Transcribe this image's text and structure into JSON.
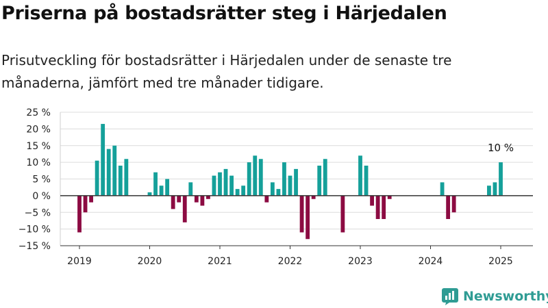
{
  "header": {
    "title": "Priserna på bostadsrätter steg i Härjedalen",
    "subtitle": "Prisutveckling för bostadsrätter i Härjedalen under de senaste tre månaderna, jämfört med tre månader tidigare."
  },
  "chart_data": {
    "type": "bar",
    "title": "Priserna på bostadsrätter steg i Härjedalen",
    "subtitle": "Prisutveckling för bostadsrätter i Härjedalen under de senaste tre månaderna, jämfört med tre månader tidigare.",
    "xlabel": "",
    "ylabel": "",
    "x_ticks": [
      "2019",
      "2020",
      "2021",
      "2022",
      "2023",
      "2024",
      "2025"
    ],
    "y_ticks": [
      "25 %",
      "20 %",
      "15 %",
      "10 %",
      "5 %",
      "0 %",
      "−5 %",
      "−10 %",
      "−15 %"
    ],
    "ylim": [
      -15,
      25
    ],
    "grid": true,
    "unit": "%",
    "colors": {
      "positive": "#15a09a",
      "negative": "#8c0b42"
    },
    "series": [
      {
        "values": [
          {
            "date": "2019-01",
            "value": -11
          },
          {
            "date": "2019-02",
            "value": -5
          },
          {
            "date": "2019-03",
            "value": -2
          },
          {
            "date": "2019-04",
            "value": 10.5
          },
          {
            "date": "2019-05",
            "value": 21.5
          },
          {
            "date": "2019-06",
            "value": 14
          },
          {
            "date": "2019-07",
            "value": 15
          },
          {
            "date": "2019-08",
            "value": 9
          },
          {
            "date": "2019-09",
            "value": 11
          },
          {
            "date": "2020-01",
            "value": 1
          },
          {
            "date": "2020-02",
            "value": 7
          },
          {
            "date": "2020-03",
            "value": 3
          },
          {
            "date": "2020-04",
            "value": 5
          },
          {
            "date": "2020-05",
            "value": -4
          },
          {
            "date": "2020-06",
            "value": -2
          },
          {
            "date": "2020-07",
            "value": -8
          },
          {
            "date": "2020-08",
            "value": 4
          },
          {
            "date": "2020-09",
            "value": -2
          },
          {
            "date": "2020-10",
            "value": -3
          },
          {
            "date": "2020-11",
            "value": -1
          },
          {
            "date": "2020-12",
            "value": 6
          },
          {
            "date": "2021-01",
            "value": 7
          },
          {
            "date": "2021-02",
            "value": 8
          },
          {
            "date": "2021-03",
            "value": 6
          },
          {
            "date": "2021-04",
            "value": 2
          },
          {
            "date": "2021-05",
            "value": 3
          },
          {
            "date": "2021-06",
            "value": 10
          },
          {
            "date": "2021-07",
            "value": 12
          },
          {
            "date": "2021-08",
            "value": 11
          },
          {
            "date": "2021-09",
            "value": -2
          },
          {
            "date": "2021-10",
            "value": 4
          },
          {
            "date": "2021-11",
            "value": 2
          },
          {
            "date": "2021-12",
            "value": 10
          },
          {
            "date": "2022-01",
            "value": 6
          },
          {
            "date": "2022-02",
            "value": 8
          },
          {
            "date": "2022-03",
            "value": -11
          },
          {
            "date": "2022-04",
            "value": -13
          },
          {
            "date": "2022-05",
            "value": -1
          },
          {
            "date": "2022-06",
            "value": 9
          },
          {
            "date": "2022-07",
            "value": 11
          },
          {
            "date": "2022-10",
            "value": -11
          },
          {
            "date": "2023-01",
            "value": 12
          },
          {
            "date": "2023-02",
            "value": 9
          },
          {
            "date": "2023-03",
            "value": -3
          },
          {
            "date": "2023-04",
            "value": -7
          },
          {
            "date": "2023-05",
            "value": -7
          },
          {
            "date": "2023-06",
            "value": -1
          },
          {
            "date": "2024-03",
            "value": 4
          },
          {
            "date": "2024-04",
            "value": -7
          },
          {
            "date": "2024-05",
            "value": -5
          },
          {
            "date": "2024-11",
            "value": 3
          },
          {
            "date": "2024-12",
            "value": 4
          },
          {
            "date": "2025-01",
            "value": 10
          }
        ]
      }
    ],
    "annotations": [
      {
        "date": "2025-01",
        "text": "10 %"
      }
    ]
  },
  "branding": {
    "logo_text": "Newsworthy",
    "logo_icon": "bar-chart-icon",
    "color": "#2f9c94"
  }
}
